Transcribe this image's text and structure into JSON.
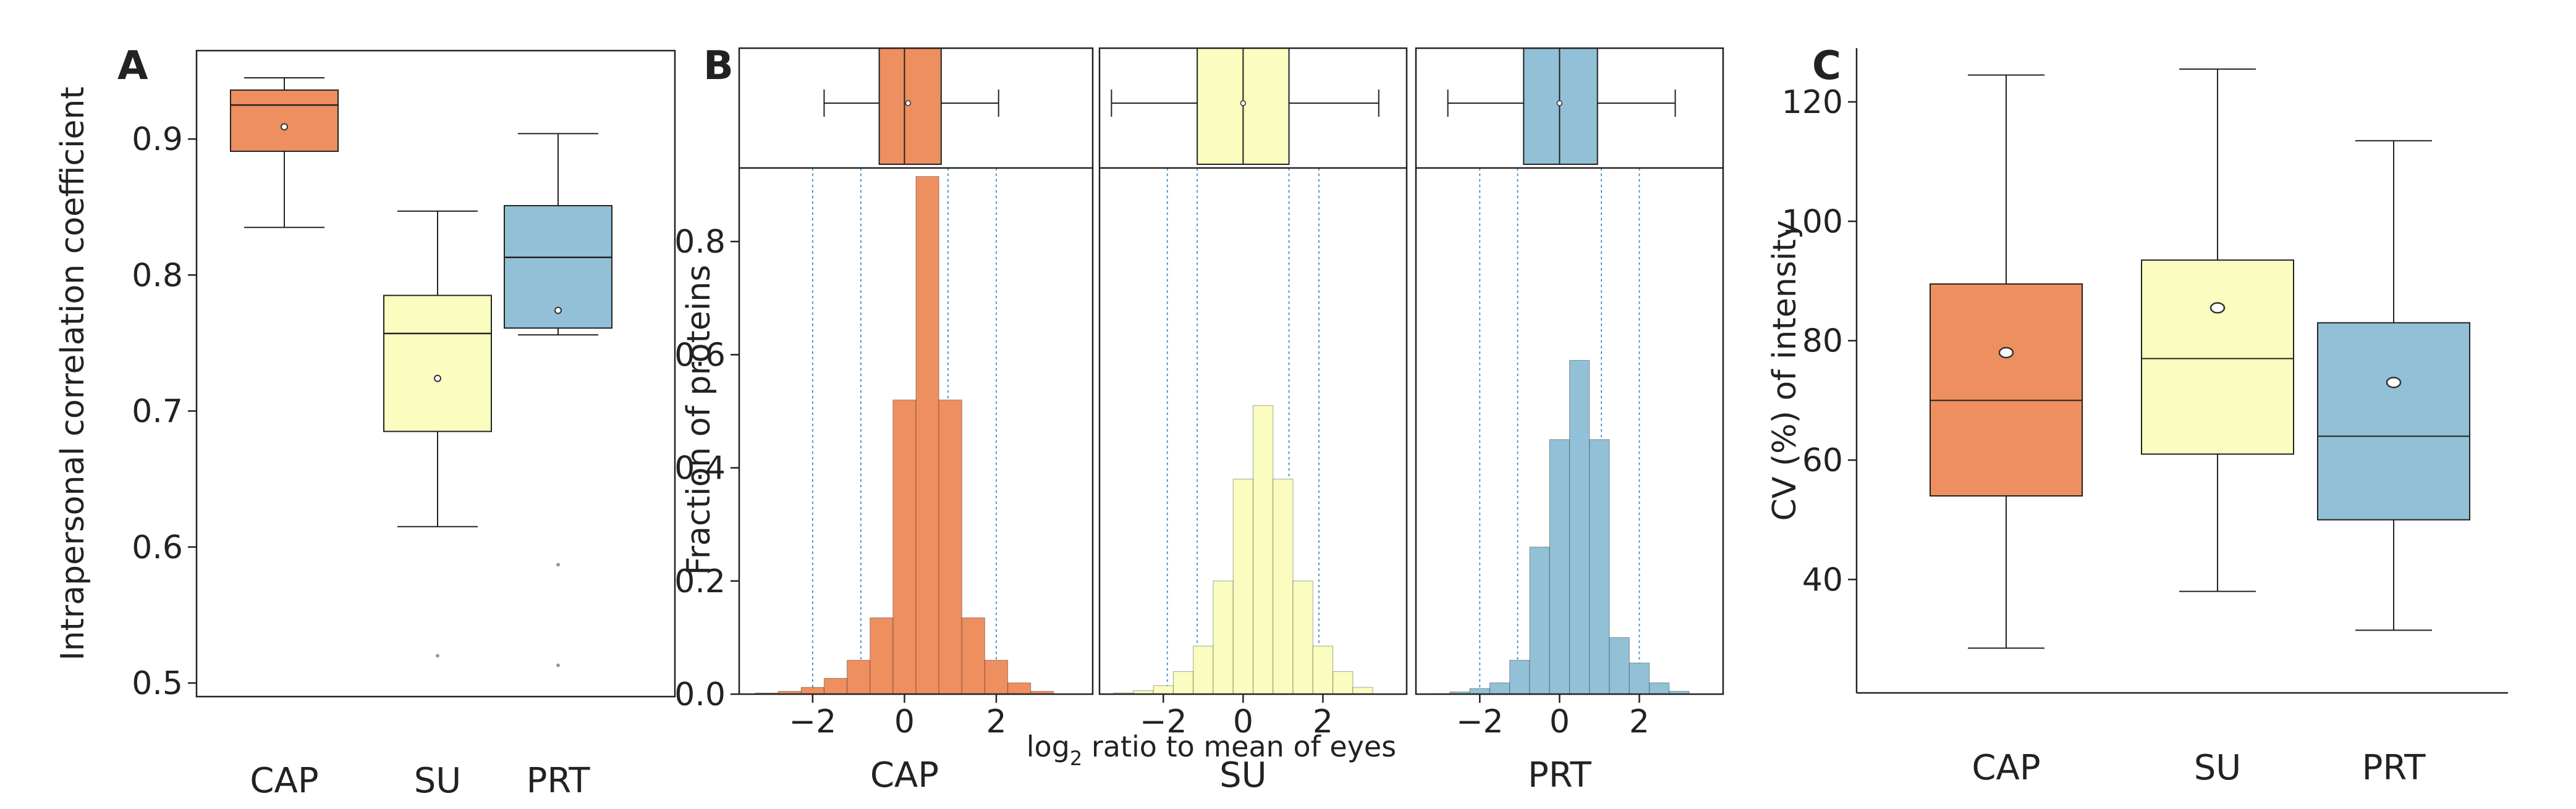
{
  "colors": {
    "cap": "#ee8f5f",
    "su": "#fafcc0",
    "prt": "#92c0d6",
    "grid": "#3a8fc8"
  },
  "chart_data": [
    {
      "panel": "A",
      "type": "box",
      "title": "",
      "xlabel": "",
      "ylabel": "Intrapersonal correlation coefficient",
      "ylim": [
        0.49,
        0.965
      ],
      "yticks": [
        0.5,
        0.6,
        0.7,
        0.8,
        0.9
      ],
      "ytick_labels": [
        "0.5",
        "0.6",
        "0.7",
        "0.8",
        "0.9"
      ],
      "categories": [
        "CAP",
        "SU",
        "PRT"
      ],
      "boxes": [
        {
          "name": "CAP",
          "whislo": 0.835,
          "q1": 0.891,
          "med": 0.925,
          "q3": 0.936,
          "whishi": 0.945,
          "mean": 0.909,
          "fliers": []
        },
        {
          "name": "SU",
          "whislo": 0.615,
          "q1": 0.685,
          "med": 0.757,
          "q3": 0.785,
          "whishi": 0.847,
          "mean": 0.724,
          "fliers": [
            0.52
          ]
        },
        {
          "name": "PRT",
          "whislo": 0.756,
          "q1": 0.761,
          "med": 0.813,
          "q3": 0.851,
          "whishi": 0.904,
          "mean": 0.774,
          "fliers": [
            0.587,
            0.513
          ]
        }
      ]
    },
    {
      "panel": "B",
      "type": "histogram",
      "title": "",
      "xlabel": "log2 ratio to mean of eyes",
      "xlabel_main": "log",
      "xlabel_sub": "2",
      "xlabel_rest": " ratio to mean of eyes",
      "ylabel": "Fraction of proteins",
      "ylim": [
        0,
        0.93
      ],
      "yticks": [
        0.0,
        0.2,
        0.4,
        0.6,
        0.8
      ],
      "ytick_labels": [
        "0.0",
        "0.2",
        "0.4",
        "0.6",
        "0.8"
      ],
      "xlim": [
        -3.6,
        4.1
      ],
      "xticks": [
        -2,
        0,
        2
      ],
      "xtick_labels": [
        "−2",
        "0",
        "2"
      ],
      "bin_edges": [
        -3.25,
        -2.75,
        -2.25,
        -1.75,
        -1.25,
        -0.75,
        -0.25,
        0.25,
        0.75,
        1.25,
        1.75,
        2.25,
        2.75,
        3.25
      ],
      "series": [
        {
          "name": "CAP",
          "values": [
            0.002,
            0.005,
            0.012,
            0.028,
            0.06,
            0.135,
            0.52,
            0.915,
            0.52,
            0.135,
            0.06,
            0.02,
            0.005
          ],
          "inner_dashed": [
            -0.95,
            0.95
          ],
          "outer_dashed": [
            -2.0,
            2.0
          ],
          "box": {
            "whislo": -1.75,
            "q1": -0.55,
            "med": 0.0,
            "q3": 0.8,
            "whishi": 2.05,
            "mean": 0.08
          }
        },
        {
          "name": "SU",
          "values": [
            0.002,
            0.006,
            0.015,
            0.04,
            0.085,
            0.2,
            0.38,
            0.51,
            0.38,
            0.2,
            0.085,
            0.04,
            0.012
          ],
          "inner_dashed": [
            -1.15,
            1.15
          ],
          "outer_dashed": [
            -1.9,
            1.9
          ],
          "box": {
            "whislo": -3.3,
            "q1": -1.15,
            "med": 0.0,
            "q3": 1.15,
            "whishi": 3.4,
            "mean": 0.0
          }
        },
        {
          "name": "PRT",
          "values": [
            0.001,
            0.004,
            0.01,
            0.02,
            0.06,
            0.26,
            0.45,
            0.59,
            0.45,
            0.1,
            0.055,
            0.02,
            0.005
          ],
          "inner_dashed": [
            -1.05,
            1.05
          ],
          "outer_dashed": [
            -2.0,
            2.0
          ],
          "box": {
            "whislo": -2.8,
            "q1": -0.9,
            "med": 0.0,
            "q3": 0.95,
            "whishi": 2.9,
            "mean": 0.0
          }
        }
      ],
      "categories": [
        "CAP",
        "SU",
        "PRT"
      ]
    },
    {
      "panel": "C",
      "type": "box",
      "title": "",
      "xlabel": "",
      "ylabel": "CV (%) of intensity",
      "ylim": [
        21,
        129
      ],
      "yticks": [
        40,
        60,
        80,
        100,
        120
      ],
      "ytick_labels": [
        "40",
        "60",
        "80",
        "100",
        "120"
      ],
      "categories": [
        "CAP",
        "SU",
        "PRT"
      ],
      "boxes": [
        {
          "name": "CAP",
          "whislo": 28.5,
          "q1": 54,
          "med": 70,
          "q3": 89.5,
          "whishi": 124.5,
          "mean": 78,
          "fliers": []
        },
        {
          "name": "SU",
          "whislo": 38,
          "q1": 61,
          "med": 77,
          "q3": 93.5,
          "whishi": 125.5,
          "mean": 85.5,
          "fliers": []
        },
        {
          "name": "PRT",
          "whislo": 31.5,
          "q1": 50,
          "med": 64,
          "q3": 83,
          "whishi": 113.5,
          "mean": 73,
          "fliers": []
        }
      ]
    }
  ]
}
